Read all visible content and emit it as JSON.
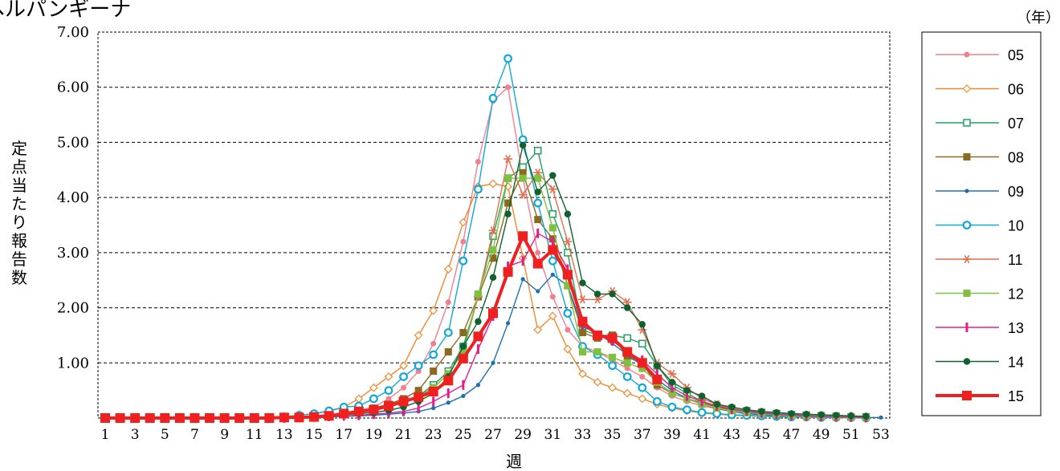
{
  "chart_data": {
    "type": "line",
    "title": "ヘルパンギーナ",
    "xlabel": "週",
    "ylabel": "定点当たり報告数",
    "unit_label": "（年）",
    "x": [
      1,
      2,
      3,
      4,
      5,
      6,
      7,
      8,
      9,
      10,
      11,
      12,
      13,
      14,
      15,
      16,
      17,
      18,
      19,
      20,
      21,
      22,
      23,
      24,
      25,
      26,
      27,
      28,
      29,
      30,
      31,
      32,
      33,
      34,
      35,
      36,
      37,
      38,
      39,
      40,
      41,
      42,
      43,
      44,
      45,
      46,
      47,
      48,
      49,
      50,
      51,
      52,
      53
    ],
    "x_tick_labels": [
      "1",
      "3",
      "5",
      "7",
      "9",
      "11",
      "13",
      "15",
      "17",
      "19",
      "21",
      "23",
      "25",
      "27",
      "29",
      "31",
      "33",
      "35",
      "37",
      "39",
      "41",
      "43",
      "45",
      "47",
      "49",
      "51",
      "53"
    ],
    "y_tick_labels": [
      "1.00",
      "2.00",
      "3.00",
      "4.00",
      "5.00",
      "6.00",
      "7.00"
    ],
    "ylim": [
      0,
      7
    ],
    "xlim": [
      1,
      53
    ],
    "grid": "horizontal dashed",
    "legend_position": "right",
    "series": [
      {
        "name": "05",
        "color": "#f08090",
        "marker": "circle",
        "values": [
          0,
          0,
          0,
          0,
          0,
          0,
          0,
          0,
          0,
          0,
          0,
          0,
          0.02,
          0.03,
          0.04,
          0.06,
          0.09,
          0.14,
          0.2,
          0.35,
          0.55,
          0.85,
          1.35,
          2.1,
          3.2,
          4.65,
          5.75,
          6.0,
          4.35,
          3.0,
          2.2,
          1.6,
          1.3,
          1.2,
          1.05,
          0.9,
          0.75,
          0.55,
          0.4,
          0.3,
          0.22,
          0.17,
          0.12,
          0.09,
          0.07,
          0.05,
          0.04,
          0.03,
          0.02,
          0.02,
          0.01,
          0.01,
          null
        ]
      },
      {
        "name": "06",
        "color": "#f08a30",
        "marker": "diamond-open",
        "values": [
          0,
          0,
          0,
          0,
          0,
          0,
          0,
          0,
          0,
          0,
          0,
          0,
          0.03,
          0.05,
          0.08,
          0.12,
          0.2,
          0.35,
          0.55,
          0.75,
          0.95,
          1.5,
          1.95,
          2.7,
          3.55,
          4.2,
          4.25,
          4.2,
          2.9,
          1.6,
          1.85,
          1.25,
          0.8,
          0.65,
          0.55,
          0.45,
          0.35,
          0.25,
          0.18,
          0.13,
          0.09,
          0.07,
          0.05,
          0.04,
          0.03,
          0.02,
          0.02,
          0.01,
          0.01,
          0.01,
          0,
          0,
          null
        ]
      },
      {
        "name": "07",
        "color": "#20a060",
        "marker": "square-open",
        "values": [
          0,
          0,
          0,
          0,
          0,
          0,
          0,
          0,
          0,
          0,
          0,
          0,
          0.01,
          0.02,
          0.03,
          0.05,
          0.07,
          0.1,
          0.15,
          0.2,
          0.3,
          0.4,
          0.6,
          0.85,
          1.3,
          2.2,
          3.3,
          4.35,
          4.55,
          4.85,
          3.7,
          3.0,
          1.6,
          1.5,
          1.5,
          1.45,
          1.35,
          0.95,
          0.6,
          0.45,
          0.3,
          0.22,
          0.17,
          0.13,
          0.1,
          0.08,
          0.06,
          0.05,
          0.04,
          0.03,
          0.02,
          0.02,
          null
        ]
      },
      {
        "name": "08",
        "color": "#8a6a20",
        "marker": "square",
        "values": [
          0,
          0,
          0,
          0,
          0,
          0,
          0,
          0,
          0,
          0,
          0,
          0,
          0.01,
          0.02,
          0.03,
          0.05,
          0.08,
          0.12,
          0.18,
          0.25,
          0.35,
          0.5,
          0.85,
          1.2,
          1.55,
          2.2,
          2.9,
          3.9,
          4.45,
          3.6,
          3.25,
          2.4,
          1.55,
          1.45,
          1.5,
          1.1,
          1.0,
          0.6,
          0.45,
          0.35,
          0.28,
          0.2,
          0.15,
          0.12,
          0.09,
          0.07,
          0.05,
          0.04,
          0.03,
          0.02,
          0.02,
          0.01,
          null
        ]
      },
      {
        "name": "09",
        "color": "#2070b0",
        "marker": "dot",
        "values": [
          0,
          0,
          0,
          0,
          0,
          0,
          0,
          0,
          0,
          0,
          0,
          0,
          0,
          0,
          0.01,
          0.02,
          0.03,
          0.04,
          0.05,
          0.07,
          0.09,
          0.12,
          0.18,
          0.28,
          0.4,
          0.6,
          1.0,
          1.72,
          2.52,
          2.3,
          2.6,
          2.4,
          1.65,
          1.55,
          1.35,
          1.15,
          0.95,
          0.7,
          0.5,
          0.35,
          0.25,
          0.17,
          0.12,
          0.08,
          0.06,
          0.05,
          0.04,
          0.03,
          0.02,
          0.02,
          0.01,
          0.01,
          0.01
        ]
      },
      {
        "name": "10",
        "color": "#10a8d8",
        "marker": "circle-open",
        "values": [
          0,
          0,
          0,
          0,
          0,
          0,
          0,
          0,
          0,
          0,
          0,
          0,
          0.02,
          0.05,
          0.08,
          0.13,
          0.2,
          0.22,
          0.35,
          0.5,
          0.75,
          0.95,
          1.15,
          1.55,
          2.85,
          4.15,
          5.8,
          6.52,
          5.05,
          3.9,
          2.85,
          1.9,
          1.3,
          1.15,
          0.95,
          0.75,
          0.55,
          0.3,
          0.2,
          0.15,
          0.1,
          0.08,
          0.06,
          0.05,
          0.04,
          0.03,
          0.02,
          0.02,
          0.01,
          0.01,
          0.01,
          0,
          null
        ]
      },
      {
        "name": "11",
        "color": "#e07050",
        "marker": "asterisk",
        "values": [
          0,
          0,
          0,
          0,
          0,
          0,
          0,
          0,
          0,
          0,
          0,
          0,
          0.01,
          0.02,
          0.03,
          0.05,
          0.08,
          0.11,
          0.15,
          0.2,
          0.3,
          0.4,
          0.55,
          0.8,
          1.2,
          2.2,
          3.4,
          4.7,
          4.05,
          4.45,
          4.15,
          3.2,
          2.15,
          2.15,
          2.3,
          2.1,
          1.6,
          1.0,
          0.8,
          0.55,
          0.35,
          0.25,
          0.17,
          0.12,
          0.09,
          0.07,
          0.05,
          0.04,
          0.03,
          0.02,
          0.02,
          0.01,
          null
        ]
      },
      {
        "name": "12",
        "color": "#80c040",
        "marker": "square",
        "values": [
          0,
          0,
          0,
          0,
          0,
          0,
          0,
          0,
          0,
          0,
          0,
          0,
          0.01,
          0.02,
          0.03,
          0.05,
          0.07,
          0.1,
          0.14,
          0.2,
          0.28,
          0.38,
          0.55,
          0.8,
          1.2,
          2.25,
          3.05,
          4.35,
          4.35,
          4.35,
          3.45,
          2.4,
          1.2,
          1.2,
          1.1,
          1.0,
          0.9,
          0.65,
          0.45,
          0.35,
          0.25,
          0.18,
          0.13,
          0.1,
          0.08,
          0.06,
          0.04,
          0.03,
          0.03,
          0.02,
          0.02,
          0.01,
          null
        ]
      },
      {
        "name": "13",
        "color": "#e0208a",
        "marker": "bar",
        "values": [
          0,
          0,
          0,
          0,
          0,
          0,
          0,
          0,
          0,
          0,
          0,
          0,
          0,
          0.01,
          0.02,
          0.03,
          0.04,
          0.05,
          0.07,
          0.09,
          0.12,
          0.18,
          0.3,
          0.45,
          0.6,
          1.25,
          1.85,
          2.75,
          2.85,
          3.35,
          3.2,
          2.7,
          1.7,
          1.5,
          1.4,
          1.2,
          1.05,
          0.8,
          0.55,
          0.4,
          0.3,
          0.22,
          0.16,
          0.12,
          0.09,
          0.07,
          0.05,
          0.04,
          0.03,
          0.02,
          0.02,
          0.01,
          null
        ]
      },
      {
        "name": "14",
        "color": "#106030",
        "marker": "dot-filled",
        "values": [
          0,
          0,
          0,
          0,
          0,
          0,
          0,
          0,
          0,
          0,
          0,
          0,
          0.01,
          0.02,
          0.03,
          0.04,
          0.06,
          0.08,
          0.1,
          0.14,
          0.2,
          0.3,
          0.45,
          0.75,
          1.3,
          1.75,
          2.55,
          3.7,
          4.95,
          4.1,
          4.4,
          3.7,
          2.45,
          2.25,
          2.25,
          2.0,
          1.7,
          0.95,
          0.65,
          0.5,
          0.4,
          0.25,
          0.2,
          0.15,
          0.12,
          0.1,
          0.08,
          0.07,
          0.06,
          0.05,
          0.04,
          0.03,
          null
        ]
      },
      {
        "name": "15",
        "color": "#ee2020",
        "marker": "square-big",
        "values": [
          0,
          0,
          0,
          0,
          0,
          0,
          0,
          0,
          0,
          0,
          0,
          0,
          0.01,
          0.01,
          0.02,
          0.04,
          0.08,
          0.12,
          0.15,
          0.22,
          0.3,
          0.38,
          0.48,
          0.68,
          1.08,
          1.48,
          1.9,
          2.65,
          3.3,
          2.8,
          3.05,
          2.6,
          1.75,
          1.5,
          1.45,
          1.2,
          1.0,
          0.7,
          null,
          null,
          null,
          null,
          null,
          null,
          null,
          null,
          null,
          null,
          null,
          null,
          null,
          null,
          null
        ]
      }
    ]
  }
}
